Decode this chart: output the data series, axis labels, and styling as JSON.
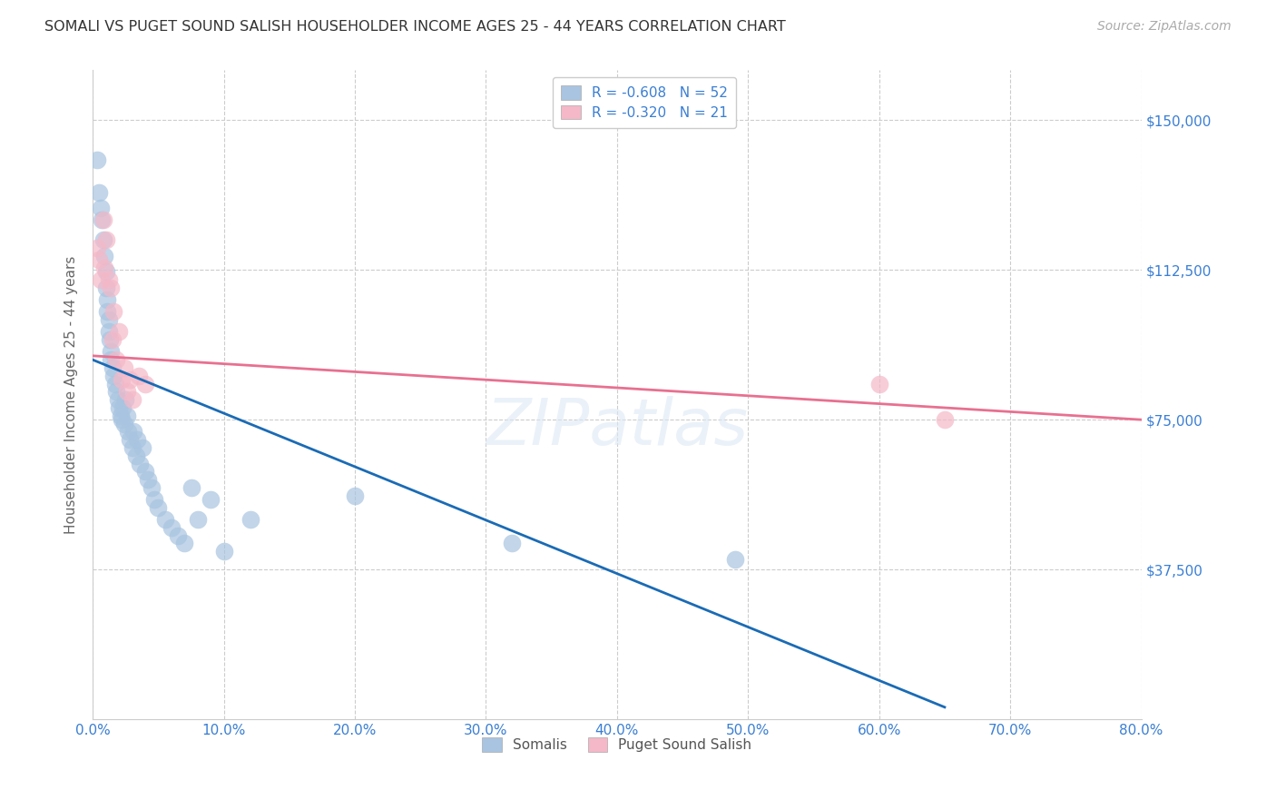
{
  "title": "SOMALI VS PUGET SOUND SALISH HOUSEHOLDER INCOME AGES 25 - 44 YEARS CORRELATION CHART",
  "source": "Source: ZipAtlas.com",
  "ylabel": "Householder Income Ages 25 - 44 years",
  "xlabel_ticks": [
    "0.0%",
    "10.0%",
    "20.0%",
    "30.0%",
    "40.0%",
    "50.0%",
    "60.0%",
    "70.0%",
    "80.0%"
  ],
  "ytick_labels": [
    "$37,500",
    "$75,000",
    "$112,500",
    "$150,000"
  ],
  "ytick_values": [
    37500,
    75000,
    112500,
    150000
  ],
  "xlim": [
    0.0,
    0.8
  ],
  "ylim": [
    0,
    162500
  ],
  "somali_color": "#a8c4e0",
  "salish_color": "#f4b8c8",
  "somali_line_color": "#1a6bb5",
  "salish_line_color": "#e87090",
  "right_label_color": "#3a7fd4",
  "background_color": "#ffffff",
  "grid_color": "#cccccc",
  "somali_x": [
    0.003,
    0.005,
    0.006,
    0.007,
    0.008,
    0.009,
    0.01,
    0.01,
    0.011,
    0.011,
    0.012,
    0.012,
    0.013,
    0.014,
    0.014,
    0.015,
    0.016,
    0.017,
    0.018,
    0.019,
    0.02,
    0.021,
    0.022,
    0.023,
    0.024,
    0.025,
    0.026,
    0.027,
    0.028,
    0.03,
    0.031,
    0.033,
    0.034,
    0.036,
    0.038,
    0.04,
    0.042,
    0.045,
    0.047,
    0.05,
    0.055,
    0.06,
    0.065,
    0.07,
    0.075,
    0.08,
    0.09,
    0.1,
    0.12,
    0.2,
    0.32,
    0.49
  ],
  "somali_y": [
    140000,
    132000,
    128000,
    125000,
    120000,
    116000,
    112000,
    108000,
    105000,
    102000,
    100000,
    97000,
    95000,
    92000,
    90000,
    88000,
    86000,
    84000,
    82000,
    80000,
    78000,
    76000,
    75000,
    78000,
    74000,
    80000,
    76000,
    72000,
    70000,
    68000,
    72000,
    66000,
    70000,
    64000,
    68000,
    62000,
    60000,
    58000,
    55000,
    53000,
    50000,
    48000,
    46000,
    44000,
    58000,
    50000,
    55000,
    42000,
    50000,
    56000,
    44000,
    40000
  ],
  "salish_x": [
    0.003,
    0.005,
    0.006,
    0.008,
    0.009,
    0.01,
    0.012,
    0.014,
    0.015,
    0.016,
    0.018,
    0.02,
    0.022,
    0.024,
    0.026,
    0.028,
    0.03,
    0.035,
    0.04,
    0.6,
    0.65
  ],
  "salish_y": [
    118000,
    115000,
    110000,
    125000,
    113000,
    120000,
    110000,
    108000,
    95000,
    102000,
    90000,
    97000,
    85000,
    88000,
    82000,
    85000,
    80000,
    86000,
    84000,
    84000,
    75000
  ],
  "somali_trendline_x": [
    0.0,
    0.65
  ],
  "somali_trendline_y": [
    90000,
    3000
  ],
  "salish_trendline_x": [
    0.0,
    0.8
  ],
  "salish_trendline_y": [
    91000,
    75000
  ]
}
